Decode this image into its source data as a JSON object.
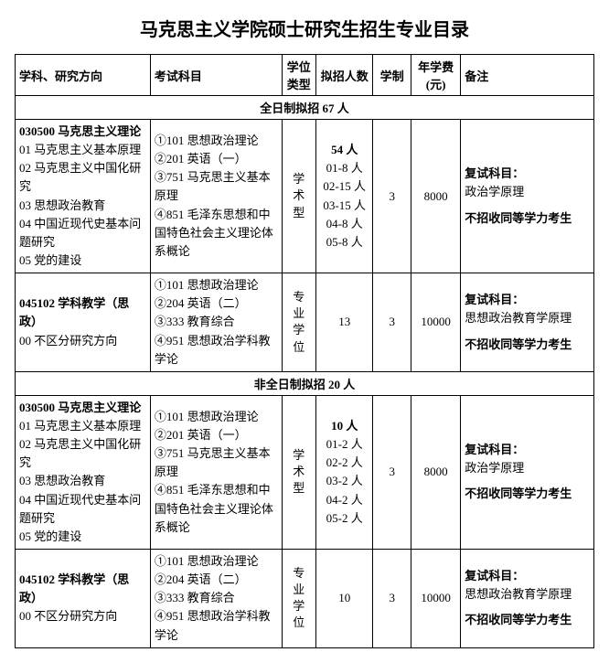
{
  "title": "马克思主义学院硕士研究生招生专业目录",
  "headers": {
    "subject": "学科、研究方向",
    "exam": "考试科目",
    "type": "学位类型",
    "count": "拟招人数",
    "duration": "学制",
    "fee": "年学费(元)",
    "note": "备注"
  },
  "sections": [
    {
      "title": "全日制拟招 67 人",
      "rows": [
        {
          "subject_bold": "030500 马克思主义理论",
          "subject_lines": [
            "01 马克思主义基本原理",
            "02 马克思主义中国化研究",
            "03 思想政治教育",
            "04 中国近现代史基本问题研究",
            "05 党的建设"
          ],
          "exam_lines": [
            "①101 思想政治理论",
            "②201 英语（一）",
            "③751 马克思主义基本原理",
            "④851 毛泽东思想和中国特色社会主义理论体系概论"
          ],
          "type": [
            "学",
            "术",
            "型"
          ],
          "count_bold": "54 人",
          "count_lines": [
            "01-8 人",
            "02-15 人",
            "03-15 人",
            "04-8 人",
            "05-8 人"
          ],
          "duration": "3",
          "fee": "8000",
          "note_bold1": "复试科目：",
          "note_line1": "政治学原理",
          "note_bold2": "不招收同等学力考生"
        },
        {
          "subject_bold": "045102 学科教学（思政）",
          "subject_lines": [
            "00 不区分研究方向"
          ],
          "exam_lines": [
            "①101 思想政治理论",
            "②204 英语（二）",
            "③333 教育综合",
            "④951 思想政治学科教学论"
          ],
          "type": [
            "专",
            "业",
            "学",
            "位"
          ],
          "count_bold": "",
          "count_lines": [
            "13"
          ],
          "duration": "3",
          "fee": "10000",
          "note_bold1": "复试科目：",
          "note_line1": "思想政治教育学原理",
          "note_bold2": "不招收同等学力考生"
        }
      ]
    },
    {
      "title": "非全日制拟招 20 人",
      "rows": [
        {
          "subject_bold": "030500 马克思主义理论",
          "subject_lines": [
            "01 马克思主义基本原理",
            "02 马克思主义中国化研究",
            "03 思想政治教育",
            "04 中国近现代史基本问题研究",
            "05 党的建设"
          ],
          "exam_lines": [
            "①101 思想政治理论",
            "②201 英语（一）",
            "③751 马克思主义基本原理",
            "④851 毛泽东思想和中国特色社会主义理论体系概论"
          ],
          "type": [
            "学",
            "术",
            "型"
          ],
          "count_bold": "10 人",
          "count_lines": [
            "01-2 人",
            "02-2 人",
            "03-2 人",
            "04-2 人",
            "05-2 人"
          ],
          "duration": "3",
          "fee": "8000",
          "note_bold1": "复试科目：",
          "note_line1": "政治学原理",
          "note_bold2": "不招收同等学力考生"
        },
        {
          "subject_bold": "045102 学科教学（思政）",
          "subject_lines": [
            "00 不区分研究方向"
          ],
          "exam_lines": [
            "①101 思想政治理论",
            "②204 英语（二）",
            "③333 教育综合",
            "④951 思想政治学科教学论"
          ],
          "type": [
            "专",
            "业",
            "学",
            "位"
          ],
          "count_bold": "",
          "count_lines": [
            "10"
          ],
          "duration": "3",
          "fee": "10000",
          "note_bold1": "复试科目：",
          "note_line1": "思想政治教育学原理",
          "note_bold2": "不招收同等学力考生"
        }
      ]
    }
  ]
}
